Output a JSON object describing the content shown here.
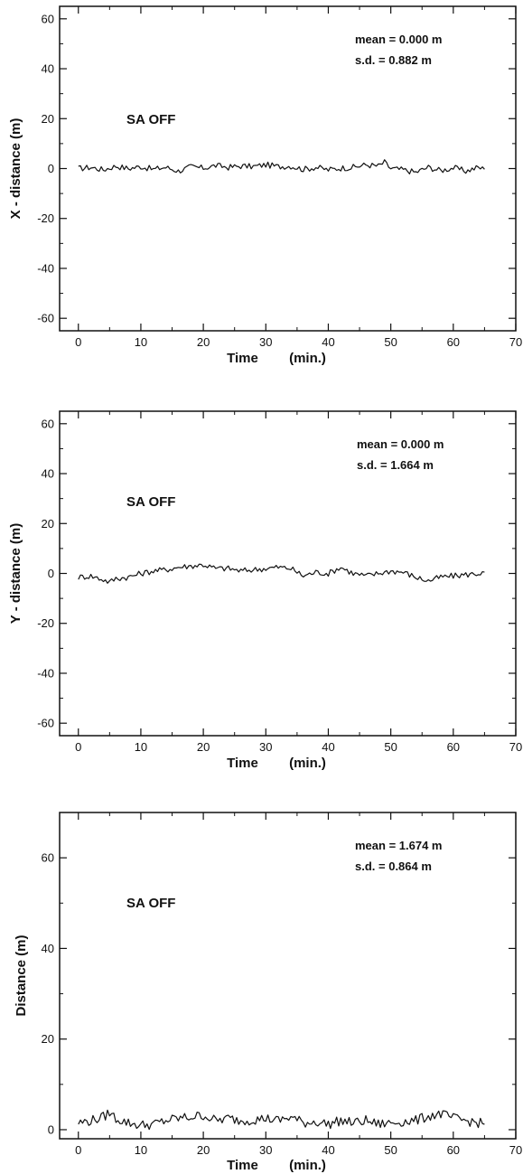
{
  "chart_data": [
    {
      "type": "line",
      "xlabel": "Time",
      "xunit": "(min.)",
      "ylabel": "X - distance (m)",
      "xlim": [
        -3,
        70
      ],
      "ylim": [
        -65,
        65
      ],
      "xticks": [
        "0",
        "10",
        "20",
        "30",
        "40",
        "50",
        "60",
        "70"
      ],
      "yticks": [
        "60",
        "40",
        "20",
        "0",
        "-20",
        "-40",
        "-60"
      ],
      "annotation": "SA  OFF",
      "stats": [
        "mean  =  0.000  m",
        "s.d.  =  0.882  m"
      ],
      "series": [
        {
          "x": [
            0,
            2,
            4,
            6,
            8,
            10,
            12,
            14,
            16,
            18,
            20,
            22,
            24,
            26,
            28,
            30,
            32,
            34,
            36,
            38,
            40,
            42,
            44,
            46,
            48,
            49,
            50,
            52,
            54,
            56,
            58,
            60,
            62,
            64,
            65
          ],
          "y": [
            0,
            0.5,
            -0.5,
            1,
            0,
            0.8,
            -0.3,
            0.5,
            -1,
            0.7,
            0.2,
            1.2,
            0.5,
            1,
            0.8,
            1.5,
            0.8,
            1,
            -0.3,
            0.5,
            -0.5,
            0.2,
            0.5,
            1.5,
            1,
            2.5,
            0,
            -0.5,
            -1.5,
            0.5,
            -0.8,
            0.3,
            -1,
            0.5,
            -0.3
          ]
        }
      ]
    },
    {
      "type": "line",
      "xlabel": "Time",
      "xunit": "(min.)",
      "ylabel": "Y - distance (m)",
      "xlim": [
        -3,
        70
      ],
      "ylim": [
        -65,
        65
      ],
      "xticks": [
        "0",
        "10",
        "20",
        "30",
        "40",
        "50",
        "60",
        "70"
      ],
      "yticks": [
        "60",
        "40",
        "20",
        "0",
        "-20",
        "-40",
        "-60"
      ],
      "annotation": "SA  OFF",
      "stats": [
        "mean  =  0.000  m",
        "s.d.  =  1.664  m"
      ],
      "series": [
        {
          "x": [
            0,
            2,
            4,
            5,
            6,
            8,
            10,
            12,
            14,
            16,
            18,
            20,
            22,
            24,
            26,
            28,
            30,
            32,
            34,
            36,
            38,
            40,
            42,
            44,
            46,
            48,
            50,
            52,
            54,
            56,
            58,
            60,
            62,
            64,
            65
          ],
          "y": [
            -1.5,
            -1,
            -2.5,
            -3.5,
            -2,
            -1.5,
            0,
            1,
            1.5,
            2.5,
            3,
            3.5,
            2,
            2,
            1,
            1.5,
            2,
            2.5,
            2,
            -1,
            0.5,
            0,
            2.5,
            0,
            -1,
            0,
            1,
            0.5,
            -1.5,
            -3,
            -1.5,
            -1,
            -0.5,
            0,
            0.5
          ]
        }
      ]
    },
    {
      "type": "line",
      "xlabel": "Time",
      "xunit": "(min.)",
      "ylabel": "Distance (m)",
      "xlim": [
        -3,
        70
      ],
      "ylim": [
        -2,
        70
      ],
      "xticks": [
        "0",
        "10",
        "20",
        "30",
        "40",
        "50",
        "60",
        "70"
      ],
      "yticks": [
        "60",
        "40",
        "20",
        "0"
      ],
      "annotation": "SA  OFF",
      "stats": [
        "mean  =  1.674  m",
        "s.d.  =  0.864  m"
      ],
      "series": [
        {
          "x": [
            0,
            2,
            4,
            5,
            6,
            8,
            10,
            12,
            14,
            16,
            18,
            20,
            22,
            24,
            26,
            28,
            30,
            32,
            34,
            36,
            38,
            40,
            42,
            44,
            46,
            48,
            50,
            52,
            54,
            56,
            58,
            60,
            62,
            64,
            65
          ],
          "y": [
            1.5,
            2,
            2.8,
            3.8,
            2.5,
            1.5,
            1,
            1.2,
            2,
            2.5,
            2.8,
            3.2,
            2,
            2.5,
            2,
            2.2,
            2.5,
            2,
            2.8,
            1.5,
            1.8,
            1.2,
            2,
            1.5,
            2,
            1.2,
            1.5,
            1.8,
            2,
            3,
            3.5,
            2.5,
            2,
            1.5,
            1.2
          ]
        }
      ]
    }
  ]
}
